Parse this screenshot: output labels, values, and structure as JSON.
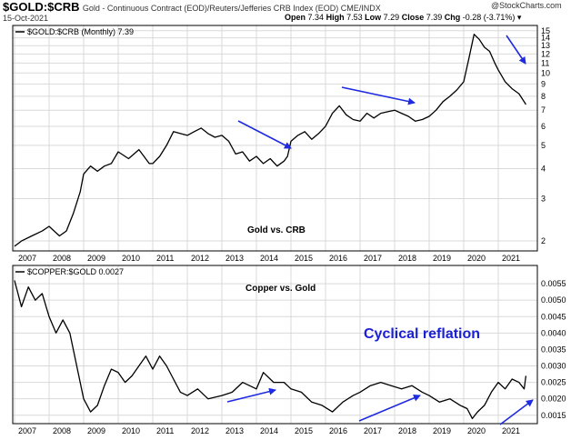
{
  "header": {
    "symbol": "$GOLD:$CRB",
    "description": "Gold - Continuous Contract (EOD)/Reuters/Jefferies CRB Index (EOD)  CME/INDX",
    "date": "15-Oct-2021",
    "brand": "@StockCharts.com",
    "open_label": "Open",
    "open": "7.34",
    "high_label": "High",
    "high": "7.53",
    "low_label": "Low",
    "low": "7.29",
    "close_label": "Close",
    "close": "7.39",
    "chg_label": "Chg",
    "chg": "-0.28 (-3.71%)"
  },
  "colors": {
    "line": "#000000",
    "arrow": "#1f2be0",
    "annotation": "#1a1fd6",
    "grid": "#d9d9d9"
  },
  "chart_data": [
    {
      "type": "line",
      "legend": "$GOLD:$CRB (Monthly) 7.39",
      "annotation": "Gold vs. CRB",
      "scale": "log",
      "ylim": [
        1.85,
        15.5
      ],
      "xlim": [
        2007.0,
        2022.0
      ],
      "yticks": [
        2,
        3,
        4,
        5,
        6,
        7,
        8,
        9,
        10,
        11,
        12,
        13,
        14,
        15
      ],
      "xticks": [
        "2007",
        "2008",
        "2009",
        "2010",
        "2011",
        "2012",
        "2013",
        "2014",
        "2015",
        "2016",
        "2017",
        "2018",
        "2019",
        "2020",
        "2021"
      ],
      "x": [
        2007.0,
        2007.2,
        2007.5,
        2007.8,
        2008.0,
        2008.3,
        2008.5,
        2008.7,
        2008.9,
        2009.0,
        2009.2,
        2009.4,
        2009.6,
        2009.8,
        2010.0,
        2010.3,
        2010.6,
        2010.9,
        2011.0,
        2011.2,
        2011.4,
        2011.6,
        2011.8,
        2012.0,
        2012.2,
        2012.4,
        2012.6,
        2012.8,
        2013.0,
        2013.2,
        2013.4,
        2013.6,
        2013.8,
        2014.0,
        2014.2,
        2014.4,
        2014.6,
        2014.8,
        2014.9,
        2015.0,
        2015.2,
        2015.4,
        2015.6,
        2015.8,
        2016.0,
        2016.2,
        2016.4,
        2016.6,
        2016.8,
        2017.0,
        2017.2,
        2017.4,
        2017.6,
        2017.8,
        2018.0,
        2018.2,
        2018.4,
        2018.6,
        2018.8,
        2019.0,
        2019.2,
        2019.4,
        2019.6,
        2019.8,
        2020.0,
        2020.15,
        2020.3,
        2020.45,
        2020.6,
        2020.75,
        2020.9,
        2021.0,
        2021.2,
        2021.4,
        2021.6,
        2021.8
      ],
      "y": [
        1.9,
        2.0,
        2.1,
        2.2,
        2.3,
        2.1,
        2.2,
        2.6,
        3.2,
        3.8,
        4.1,
        3.9,
        4.1,
        4.2,
        4.7,
        4.4,
        4.8,
        4.2,
        4.2,
        4.5,
        5.0,
        5.7,
        5.6,
        5.5,
        5.7,
        5.9,
        5.6,
        5.4,
        5.5,
        5.2,
        4.6,
        4.7,
        4.3,
        4.5,
        4.2,
        4.4,
        4.1,
        4.3,
        4.5,
        5.2,
        5.5,
        5.7,
        5.3,
        5.6,
        6.0,
        6.8,
        7.3,
        6.7,
        6.4,
        6.3,
        6.8,
        6.5,
        6.8,
        6.9,
        7.0,
        6.8,
        6.6,
        6.3,
        6.4,
        6.6,
        7.0,
        7.6,
        8.0,
        8.5,
        9.2,
        11.5,
        14.5,
        13.8,
        12.8,
        12.3,
        11.0,
        10.3,
        9.2,
        8.6,
        8.2,
        7.4
      ]
    },
    {
      "type": "line",
      "legend": "$COPPER:$GOLD 0.0027",
      "annotation": "Copper vs. Gold",
      "headline": "Cyclical reflation",
      "scale": "linear",
      "ylim": [
        0.0013,
        0.006
      ],
      "xlim": [
        2007.0,
        2022.0
      ],
      "yticks": [
        "0.0015",
        "0.0020",
        "0.0025",
        "0.0030",
        "0.0035",
        "0.0040",
        "0.0045",
        "0.0050",
        "0.0055"
      ],
      "xticks": [
        "2007",
        "2008",
        "2009",
        "2010",
        "2011",
        "2012",
        "2013",
        "2014",
        "2015",
        "2016",
        "2017",
        "2018",
        "2019",
        "2020",
        "2021"
      ],
      "x": [
        2007.0,
        2007.2,
        2007.4,
        2007.6,
        2007.8,
        2008.0,
        2008.2,
        2008.4,
        2008.6,
        2008.8,
        2009.0,
        2009.2,
        2009.4,
        2009.6,
        2009.8,
        2010.0,
        2010.2,
        2010.4,
        2010.6,
        2010.8,
        2011.0,
        2011.2,
        2011.4,
        2011.6,
        2011.8,
        2012.0,
        2012.3,
        2012.6,
        2013.0,
        2013.3,
        2013.6,
        2014.0,
        2014.2,
        2014.5,
        2014.8,
        2015.0,
        2015.3,
        2015.6,
        2015.9,
        2016.2,
        2016.5,
        2016.8,
        2017.0,
        2017.3,
        2017.6,
        2017.9,
        2018.2,
        2018.5,
        2018.8,
        2019.0,
        2019.3,
        2019.6,
        2019.9,
        2020.1,
        2020.25,
        2020.4,
        2020.6,
        2020.8,
        2021.0,
        2021.2,
        2021.4,
        2021.6,
        2021.75,
        2021.8
      ],
      "y": [
        0.0056,
        0.0048,
        0.0054,
        0.005,
        0.0052,
        0.0045,
        0.004,
        0.0044,
        0.004,
        0.003,
        0.002,
        0.0016,
        0.0018,
        0.0024,
        0.0029,
        0.0028,
        0.0025,
        0.0027,
        0.003,
        0.0033,
        0.0029,
        0.0033,
        0.003,
        0.0026,
        0.0022,
        0.0021,
        0.0023,
        0.002,
        0.0021,
        0.0022,
        0.0025,
        0.0023,
        0.0028,
        0.0025,
        0.0025,
        0.0023,
        0.0022,
        0.0019,
        0.0018,
        0.0016,
        0.0019,
        0.0021,
        0.0022,
        0.0024,
        0.0025,
        0.0024,
        0.0023,
        0.0024,
        0.0022,
        0.0021,
        0.0019,
        0.002,
        0.0018,
        0.0017,
        0.0014,
        0.0016,
        0.0018,
        0.0022,
        0.0025,
        0.0023,
        0.0026,
        0.0025,
        0.0023,
        0.0027
      ]
    }
  ]
}
